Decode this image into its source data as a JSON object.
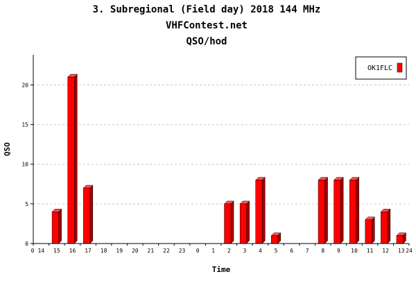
{
  "chart_data": {
    "type": "bar",
    "title": "3. Subregional (Field day) 2018 144 MHz",
    "subtitle_1": "VHFContest.net",
    "subtitle_2": "QSO/hod",
    "xlabel": "Time",
    "ylabel": "QSO",
    "x_start_label": "0",
    "x_end_label": "24",
    "categories": [
      "14",
      "15",
      "16",
      "17",
      "18",
      "19",
      "20",
      "21",
      "22",
      "23",
      "0",
      "1",
      "2",
      "3",
      "4",
      "5",
      "6",
      "7",
      "8",
      "9",
      "10",
      "11",
      "12",
      "13"
    ],
    "series": [
      {
        "name": "OK1FLC",
        "color": "#ff0000",
        "values": [
          0,
          4,
          21,
          7,
          0,
          0,
          0,
          0,
          0,
          0,
          0,
          0,
          5,
          5,
          8,
          1,
          0,
          0,
          8,
          8,
          8,
          3,
          4,
          1
        ]
      }
    ],
    "yticks": [
      0,
      5,
      10,
      15,
      20
    ],
    "ylim": [
      0,
      23.8
    ],
    "grid": true,
    "legend": "top-right"
  }
}
